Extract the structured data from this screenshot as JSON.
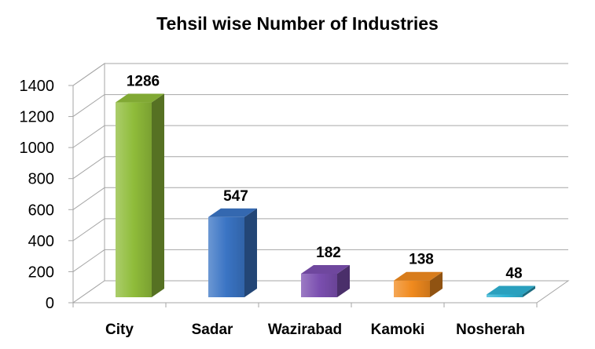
{
  "chart_data": {
    "type": "bar",
    "title": "Tehsil wise Number of Industries",
    "xlabel": "",
    "ylabel": "",
    "categories": [
      "City",
      "Sadar",
      "Wazirabad",
      "Kamoki",
      "Nosherah"
    ],
    "values": [
      1286,
      547,
      182,
      138,
      48
    ],
    "ylim": [
      0,
      1400
    ],
    "yticks": [
      "0",
      "200",
      "400",
      "600",
      "800",
      "1000",
      "1200",
      "1400"
    ],
    "grid": true,
    "legend": "none",
    "style": "3d-column",
    "colors": [
      "#8fbc3a",
      "#3a74c4",
      "#7b4fb0",
      "#f08a1e",
      "#2fb2d3"
    ]
  }
}
